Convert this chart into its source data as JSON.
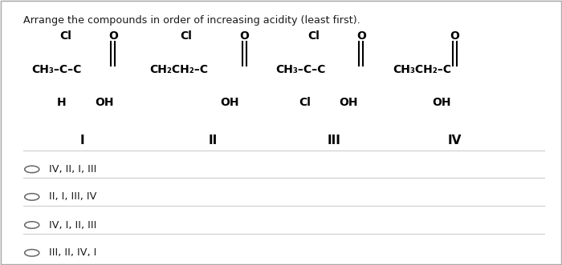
{
  "title": "Arrange the compounds in order of increasing acidity (least first).",
  "background_color": "#f0f0f0",
  "panel_background": "#ffffff",
  "options": [
    "IV, II, I, III",
    "II, I, III, IV",
    "IV, I, II, III",
    "III, II, IV, I"
  ],
  "text_color": "#1a1a1a",
  "line_color": "#cccccc"
}
